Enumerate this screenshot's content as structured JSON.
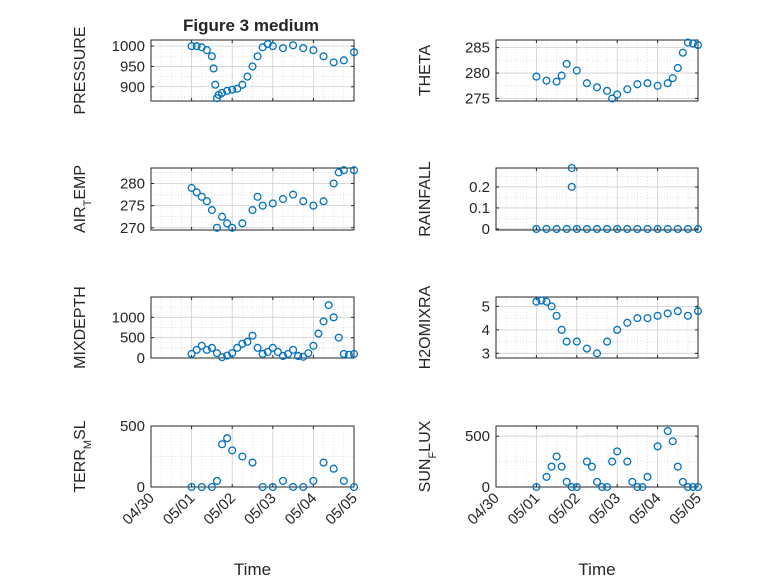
{
  "figure_title": "Figure 3 medium",
  "marker_color": "#0072BD",
  "x_tick_labels": [
    "04/30",
    "05/01",
    "05/02",
    "05/03",
    "05/04",
    "05/05"
  ],
  "chart_data": [
    {
      "type": "scatter",
      "ylabel": "PRESSURE",
      "ylabel_sub": "",
      "ylim": [
        865,
        1015
      ],
      "yticks": [
        900,
        950,
        1000
      ],
      "xlabel": "",
      "x": [
        "2023-05-01 00:00",
        "2023-05-01 03:00",
        "2023-05-01 06:00",
        "2023-05-01 09:00",
        "2023-05-01 12:00",
        "2023-05-01 13:00",
        "2023-05-01 14:00",
        "2023-05-01 15:00",
        "2023-05-01 16:00",
        "2023-05-01 18:00",
        "2023-05-01 21:00",
        "2023-05-02 00:00",
        "2023-05-02 03:00",
        "2023-05-02 06:00",
        "2023-05-02 09:00",
        "2023-05-02 12:00",
        "2023-05-02 15:00",
        "2023-05-02 18:00",
        "2023-05-02 21:00",
        "2023-05-03 00:00",
        "2023-05-03 06:00",
        "2023-05-03 12:00",
        "2023-05-03 18:00",
        "2023-05-04 00:00",
        "2023-05-04 06:00",
        "2023-05-04 12:00",
        "2023-05-04 18:00",
        "2023-05-05 00:00"
      ],
      "y": [
        1000,
        1000,
        997,
        990,
        975,
        945,
        905,
        872,
        880,
        885,
        890,
        893,
        895,
        905,
        925,
        950,
        975,
        997,
        1005,
        1000,
        995,
        1002,
        995,
        990,
        975,
        960,
        965,
        985
      ]
    },
    {
      "type": "scatter",
      "ylabel": "THETA",
      "ylabel_sub": "",
      "ylim": [
        274.5,
        286.5
      ],
      "yticks": [
        275,
        280,
        285
      ],
      "xlabel": "",
      "x": [
        "2023-05-01 00:00",
        "2023-05-01 06:00",
        "2023-05-01 12:00",
        "2023-05-01 15:00",
        "2023-05-01 18:00",
        "2023-05-02 00:00",
        "2023-05-02 06:00",
        "2023-05-02 12:00",
        "2023-05-02 18:00",
        "2023-05-02 21:00",
        "2023-05-03 00:00",
        "2023-05-03 06:00",
        "2023-05-03 12:00",
        "2023-05-03 18:00",
        "2023-05-04 00:00",
        "2023-05-04 06:00",
        "2023-05-04 09:00",
        "2023-05-04 12:00",
        "2023-05-04 15:00",
        "2023-05-04 18:00",
        "2023-05-04 21:00",
        "2023-05-05 00:00"
      ],
      "y": [
        279.3,
        278.5,
        278.3,
        279.5,
        281.8,
        280.5,
        278.0,
        277.2,
        276.5,
        275.0,
        275.8,
        276.8,
        277.8,
        278.0,
        277.5,
        278.0,
        279.0,
        281.0,
        284.0,
        286.0,
        285.8,
        285.5
      ]
    },
    {
      "type": "scatter",
      "ylabel": "AIR",
      "ylabel_sub": "T",
      "ylabel_after": "EMP",
      "ylim": [
        269.5,
        283.5
      ],
      "yticks": [
        270,
        275,
        280
      ],
      "xlabel": "",
      "x": [
        "2023-05-01 00:00",
        "2023-05-01 03:00",
        "2023-05-01 06:00",
        "2023-05-01 09:00",
        "2023-05-01 12:00",
        "2023-05-01 15:00",
        "2023-05-01 18:00",
        "2023-05-01 21:00",
        "2023-05-02 00:00",
        "2023-05-02 06:00",
        "2023-05-02 12:00",
        "2023-05-02 15:00",
        "2023-05-02 18:00",
        "2023-05-03 00:00",
        "2023-05-03 06:00",
        "2023-05-03 12:00",
        "2023-05-03 18:00",
        "2023-05-04 00:00",
        "2023-05-04 06:00",
        "2023-05-04 12:00",
        "2023-05-04 15:00",
        "2023-05-04 18:00",
        "2023-05-05 00:00"
      ],
      "y": [
        279.0,
        278.0,
        277.0,
        276.0,
        274.0,
        270.0,
        272.5,
        271.0,
        270.0,
        271.0,
        274.0,
        277.0,
        275.0,
        275.5,
        276.5,
        277.5,
        276.0,
        275.0,
        276.0,
        280.0,
        282.5,
        283.0,
        283.0
      ]
    },
    {
      "type": "scatter",
      "ylabel": "RAINFALL",
      "ylabel_sub": "",
      "ylim": [
        -0.005,
        0.29
      ],
      "yticks": [
        0,
        0.1,
        0.2
      ],
      "ytick_labels": [
        "0",
        "0.1",
        "0.2"
      ],
      "xlabel": "",
      "x": [
        "2023-05-01 00:00",
        "2023-05-01 06:00",
        "2023-05-01 12:00",
        "2023-05-01 18:00",
        "2023-05-02 00:00",
        "2023-05-02 06:00",
        "2023-05-02 12:00",
        "2023-05-02 18:00",
        "2023-05-03 00:00",
        "2023-05-03 06:00",
        "2023-05-03 12:00",
        "2023-05-03 18:00",
        "2023-05-04 00:00",
        "2023-05-04 06:00",
        "2023-05-04 12:00",
        "2023-05-04 18:00",
        "2023-05-05 00:00",
        "2023-05-01 21:00",
        "2023-05-01 21:00"
      ],
      "y": [
        0,
        0,
        0,
        0,
        0,
        0,
        0,
        0,
        0,
        0,
        0,
        0,
        0,
        0,
        0,
        0,
        0,
        0.2,
        0.29
      ]
    },
    {
      "type": "scatter",
      "ylabel": "MIXDEPTH",
      "ylabel_sub": "",
      "ylim": [
        0,
        1500
      ],
      "yticks": [
        0,
        500,
        1000
      ],
      "xlabel": "",
      "x": [
        "2023-05-01 00:00",
        "2023-05-01 03:00",
        "2023-05-01 06:00",
        "2023-05-01 09:00",
        "2023-05-01 12:00",
        "2023-05-01 15:00",
        "2023-05-01 18:00",
        "2023-05-01 21:00",
        "2023-05-02 00:00",
        "2023-05-02 03:00",
        "2023-05-02 06:00",
        "2023-05-02 09:00",
        "2023-05-02 12:00",
        "2023-05-02 15:00",
        "2023-05-02 18:00",
        "2023-05-02 21:00",
        "2023-05-03 00:00",
        "2023-05-03 03:00",
        "2023-05-03 06:00",
        "2023-05-03 09:00",
        "2023-05-03 12:00",
        "2023-05-03 15:00",
        "2023-05-03 18:00",
        "2023-05-03 21:00",
        "2023-05-04 00:00",
        "2023-05-04 03:00",
        "2023-05-04 06:00",
        "2023-05-04 09:00",
        "2023-05-04 12:00",
        "2023-05-04 15:00",
        "2023-05-04 18:00",
        "2023-05-04 21:00",
        "2023-05-05 00:00"
      ],
      "y": [
        100,
        200,
        300,
        200,
        250,
        120,
        20,
        60,
        120,
        250,
        350,
        400,
        550,
        250,
        100,
        150,
        250,
        150,
        50,
        100,
        200,
        50,
        30,
        120,
        300,
        600,
        900,
        1300,
        1000,
        500,
        100,
        80,
        100
      ]
    },
    {
      "type": "scatter",
      "ylabel": "H2OMIXRA",
      "ylabel_sub": "",
      "ylim": [
        2.8,
        5.4
      ],
      "yticks": [
        3,
        4,
        5
      ],
      "xlabel": "",
      "x": [
        "2023-05-01 00:00",
        "2023-05-01 03:00",
        "2023-05-01 06:00",
        "2023-05-01 09:00",
        "2023-05-01 12:00",
        "2023-05-01 15:00",
        "2023-05-01 18:00",
        "2023-05-02 00:00",
        "2023-05-02 06:00",
        "2023-05-02 12:00",
        "2023-05-02 18:00",
        "2023-05-03 00:00",
        "2023-05-03 06:00",
        "2023-05-03 12:00",
        "2023-05-03 18:00",
        "2023-05-04 00:00",
        "2023-05-04 06:00",
        "2023-05-04 12:00",
        "2023-05-04 18:00",
        "2023-05-05 00:00"
      ],
      "y": [
        5.2,
        5.25,
        5.2,
        5.0,
        4.6,
        4.0,
        3.5,
        3.5,
        3.2,
        3.0,
        3.5,
        4.0,
        4.3,
        4.5,
        4.5,
        4.6,
        4.7,
        4.8,
        4.6,
        4.8
      ]
    },
    {
      "type": "scatter",
      "ylabel": "TERR",
      "ylabel_sub": "M",
      "ylabel_after": "SL",
      "ylim": [
        0,
        500
      ],
      "yticks": [
        0,
        500
      ],
      "xlabel": "Time",
      "x": [
        "2023-05-01 00:00",
        "2023-05-01 06:00",
        "2023-05-01 12:00",
        "2023-05-01 15:00",
        "2023-05-01 18:00",
        "2023-05-01 21:00",
        "2023-05-02 00:00",
        "2023-05-02 06:00",
        "2023-05-02 12:00",
        "2023-05-02 18:00",
        "2023-05-03 00:00",
        "2023-05-03 06:00",
        "2023-05-03 12:00",
        "2023-05-03 18:00",
        "2023-05-04 00:00",
        "2023-05-04 06:00",
        "2023-05-04 12:00",
        "2023-05-04 18:00",
        "2023-05-05 00:00"
      ],
      "y": [
        0,
        0,
        0,
        50,
        350,
        400,
        300,
        250,
        200,
        0,
        0,
        50,
        0,
        0,
        50,
        200,
        150,
        50,
        0
      ]
    },
    {
      "type": "scatter",
      "ylabel": "SUN",
      "ylabel_sub": "F",
      "ylabel_after": "LUX",
      "ylim": [
        0,
        600
      ],
      "yticks": [
        0,
        500
      ],
      "xlabel": "Time",
      "x": [
        "2023-05-01 00:00",
        "2023-05-01 06:00",
        "2023-05-01 09:00",
        "2023-05-01 12:00",
        "2023-05-01 15:00",
        "2023-05-01 18:00",
        "2023-05-01 21:00",
        "2023-05-02 00:00",
        "2023-05-02 06:00",
        "2023-05-02 09:00",
        "2023-05-02 12:00",
        "2023-05-02 15:00",
        "2023-05-02 18:00",
        "2023-05-02 21:00",
        "2023-05-03 00:00",
        "2023-05-03 06:00",
        "2023-05-03 09:00",
        "2023-05-03 12:00",
        "2023-05-03 15:00",
        "2023-05-03 18:00",
        "2023-05-04 00:00",
        "2023-05-04 06:00",
        "2023-05-04 09:00",
        "2023-05-04 12:00",
        "2023-05-04 15:00",
        "2023-05-04 18:00",
        "2023-05-04 21:00",
        "2023-05-05 00:00"
      ],
      "y": [
        0,
        100,
        200,
        300,
        200,
        50,
        0,
        0,
        250,
        200,
        50,
        0,
        0,
        250,
        350,
        250,
        50,
        0,
        0,
        100,
        400,
        550,
        450,
        200,
        50,
        0,
        0,
        0
      ]
    }
  ]
}
